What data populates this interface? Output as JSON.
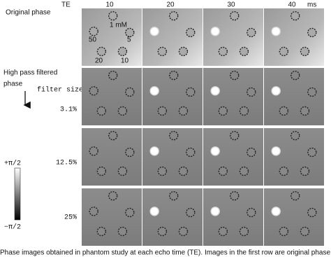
{
  "header": {
    "te": "TE",
    "echo_times": [
      "10",
      "20",
      "30",
      "40"
    ],
    "unit": "ms"
  },
  "rows": [
    {
      "label": "Original phase"
    },
    {
      "label": "3.1%"
    },
    {
      "label": "12.5%"
    },
    {
      "label": "25%"
    }
  ],
  "labels": {
    "filtered": [
      "High pass filtered",
      "phase"
    ],
    "filter_size": "filter size"
  },
  "annotations": [
    "1 mM",
    "50",
    "5",
    "20",
    "10"
  ],
  "colorbar": {
    "max": "+π/2",
    "min": "−π/2"
  },
  "caption": "Phase images obtained in phantom study at each echo time (TE). Images in the first row are original phase images; those in the rows"
}
